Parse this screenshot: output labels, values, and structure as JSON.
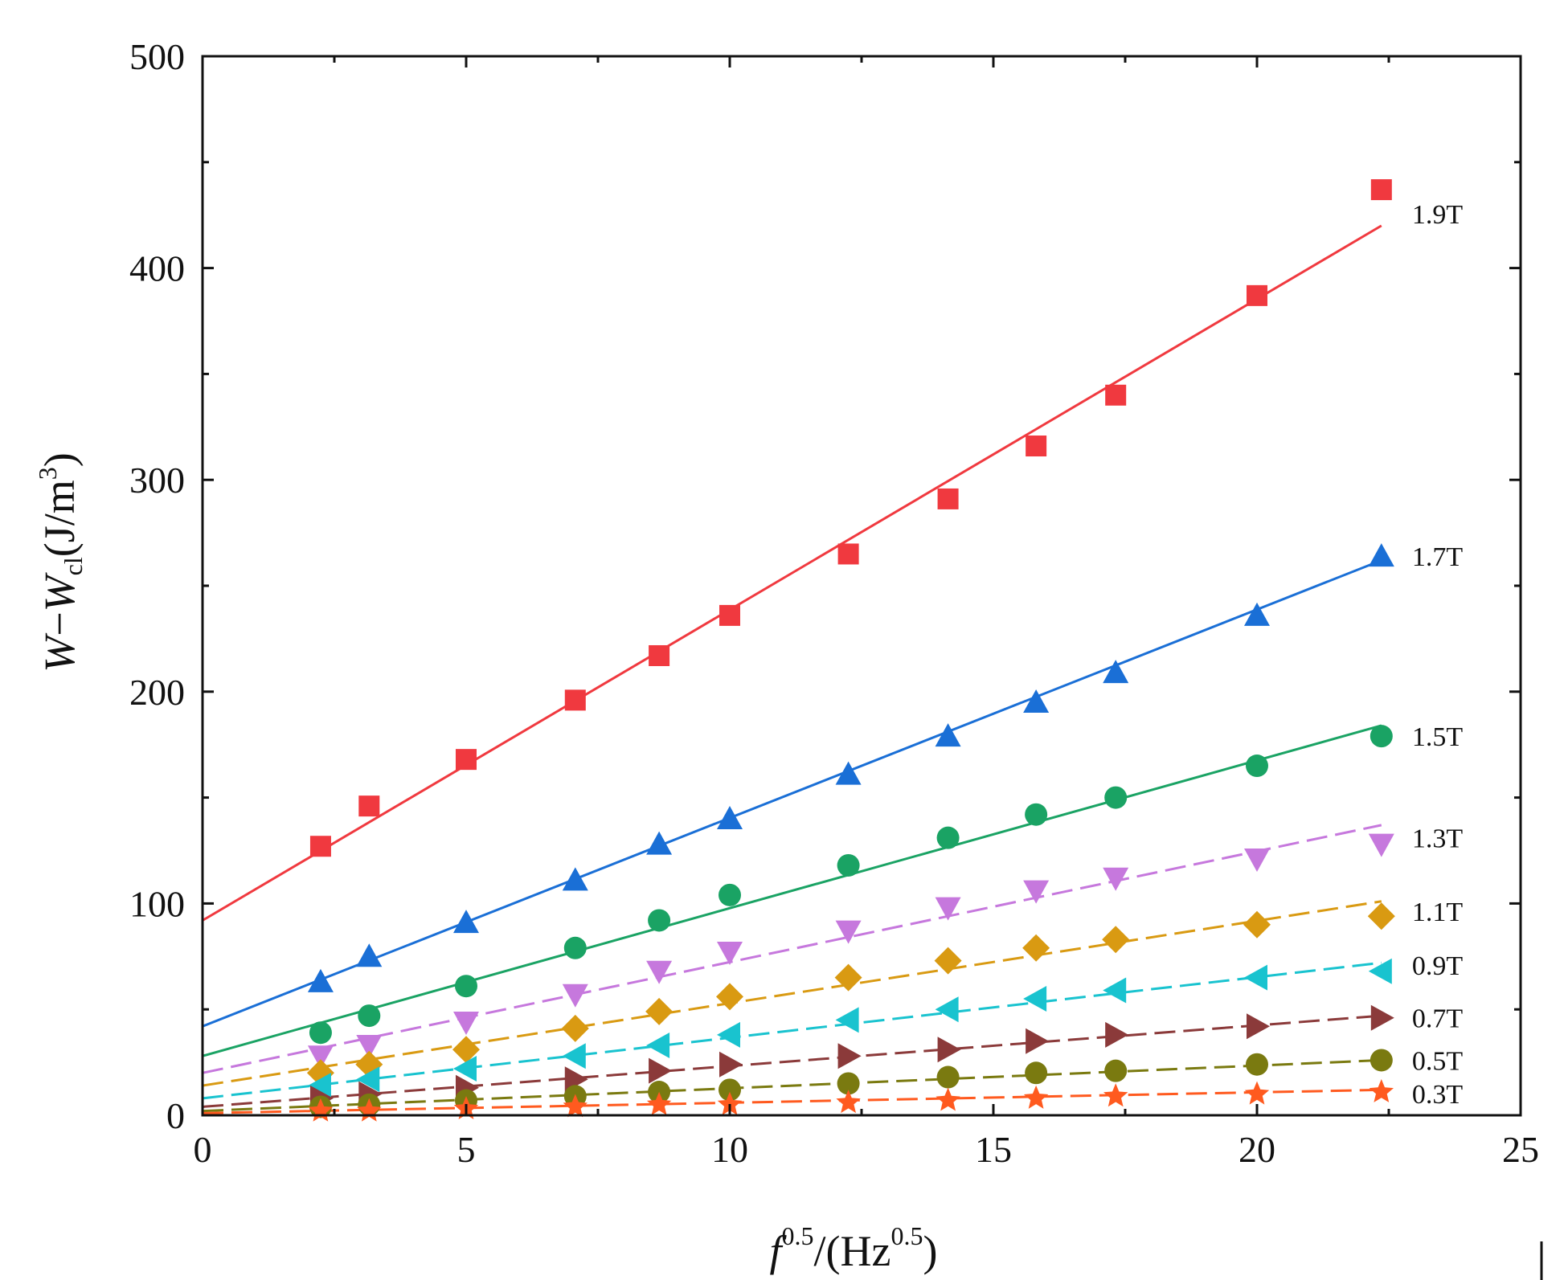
{
  "chart_data": {
    "type": "scatter",
    "title": "",
    "xlabel": {
      "base": "f",
      "sup1": "0.5",
      "mid": "/(Hz",
      "sup2": "0.5",
      "end": ")"
    },
    "ylabel": {
      "pre": "W",
      "dash": "−",
      "sym": "W",
      "sub": "cl",
      "unit": "(J/m",
      "sup": "3",
      "close": ")"
    },
    "xlim": [
      0,
      25
    ],
    "ylim": [
      0,
      500
    ],
    "xticks": [
      "0",
      "5",
      "10",
      "15",
      "20",
      "25"
    ],
    "yticks": [
      "0",
      "100",
      "200",
      "300",
      "400",
      "500"
    ],
    "x": [
      2.24,
      3.16,
      5,
      7.07,
      8.66,
      10,
      12.25,
      14.14,
      15.81,
      17.32,
      20,
      22.36
    ],
    "series": [
      {
        "name": "1.9T",
        "color": "#f0393f",
        "marker": "square",
        "dashed": false,
        "values": [
          127,
          146,
          168,
          196,
          217,
          236,
          265,
          291,
          316,
          340,
          387,
          437
        ],
        "fit": [
          92,
          420
        ]
      },
      {
        "name": "1.7T",
        "color": "#1a6fd6",
        "marker": "triangle-up",
        "dashed": false,
        "values": [
          63,
          75,
          91,
          111,
          128,
          140,
          161,
          179,
          195,
          209,
          236,
          264
        ],
        "fit": [
          42,
          262
        ]
      },
      {
        "name": "1.5T",
        "color": "#1aa364",
        "marker": "circle",
        "dashed": false,
        "values": [
          39,
          47,
          61,
          79,
          92,
          104,
          118,
          131,
          142,
          150,
          165,
          179
        ],
        "fit": [
          28,
          184
        ]
      },
      {
        "name": "1.3T",
        "color": "#c678dd",
        "marker": "triangle-down",
        "dashed": true,
        "values": [
          28,
          33,
          44,
          57,
          68,
          77,
          87,
          98,
          106,
          112,
          121,
          128
        ],
        "fit": [
          20,
          137
        ]
      },
      {
        "name": "1.1T",
        "color": "#d99a12",
        "marker": "diamond",
        "dashed": true,
        "values": [
          20,
          24,
          31,
          41,
          49,
          56,
          65,
          73,
          79,
          83,
          90,
          94
        ],
        "fit": [
          14,
          101
        ]
      },
      {
        "name": "0.9T",
        "color": "#19c3cf",
        "marker": "triangle-left",
        "dashed": true,
        "values": [
          14,
          17,
          22,
          28,
          33,
          38,
          45,
          50,
          55,
          59,
          65,
          68
        ],
        "fit": [
          8,
          72
        ]
      },
      {
        "name": "0.7T",
        "color": "#8b3a3a",
        "marker": "triangle-right",
        "dashed": true,
        "values": [
          8,
          10,
          13,
          17,
          21,
          24,
          28,
          31,
          35,
          38,
          42,
          46
        ],
        "fit": [
          4,
          47
        ]
      },
      {
        "name": "0.5T",
        "color": "#7a7a10",
        "marker": "circle",
        "dashed": true,
        "values": [
          4,
          5,
          7,
          9,
          11,
          12,
          15,
          18,
          20,
          21,
          24,
          26
        ],
        "fit": [
          2,
          26
        ]
      },
      {
        "name": "0.3T",
        "color": "#ff5a1f",
        "marker": "star",
        "dashed": true,
        "values": [
          2,
          2,
          3,
          4,
          5,
          5,
          6,
          7,
          8,
          9,
          10,
          11
        ],
        "fit": [
          1,
          12
        ]
      }
    ]
  }
}
